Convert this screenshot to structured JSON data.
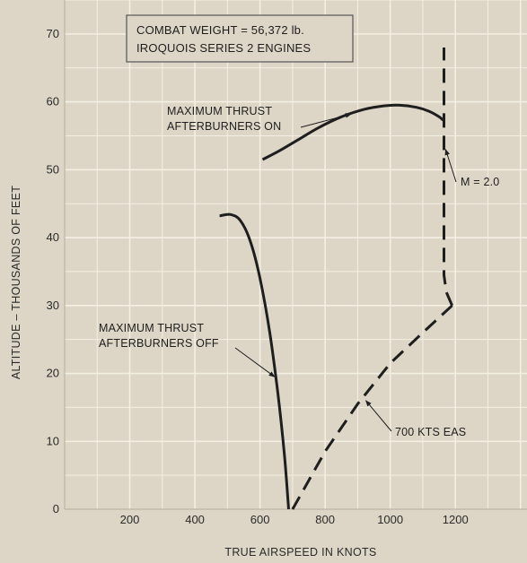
{
  "chart_data": {
    "type": "line",
    "xlabel": "TRUE AIRSPEED IN KNOTS",
    "ylabel": "ALTITUDE – THOUSANDS OF FEET",
    "xlim": [
      0,
      1420
    ],
    "ylim": [
      0,
      75
    ],
    "x_ticks": [
      200,
      400,
      600,
      800,
      1000,
      1200
    ],
    "y_ticks": [
      0,
      10,
      20,
      30,
      40,
      50,
      60,
      70
    ],
    "grid": true,
    "colors": {
      "background": "#ddd6c6",
      "grid": "#f4efe3",
      "ink": "#1e1e1e"
    },
    "info_box": [
      "COMBAT WEIGHT = 56,372 lb.",
      "IROQUOIS SERIES 2 ENGINES"
    ],
    "series": [
      {
        "line_style": "solid",
        "x": [
          608,
          660,
          720,
          780,
          850,
          920,
          980,
          1030,
          1080,
          1120,
          1150,
          1162
        ],
        "y": [
          51.5,
          52.8,
          54.5,
          56.2,
          57.8,
          58.9,
          59.4,
          59.5,
          59.2,
          58.6,
          57.8,
          57.3
        ]
      },
      {
        "line_style": "solid",
        "x": [
          476,
          510,
          540,
          570,
          600,
          630,
          655,
          675,
          688
        ],
        "y": [
          43.2,
          43.4,
          42.5,
          39.5,
          34.0,
          26.0,
          17.0,
          8.0,
          0
        ]
      },
      {
        "line_style": "dashed",
        "x": [
          700,
          800,
          900,
          1000,
          1100,
          1190
        ],
        "y": [
          0,
          8.5,
          15.5,
          21.5,
          26.0,
          30.0
        ]
      },
      {
        "line_style": "dashed",
        "x": [
          1190,
          1172,
          1165,
          1165
        ],
        "y": [
          30.0,
          32.0,
          34.5,
          68.0
        ]
      }
    ],
    "annotations": [
      {
        "lines": [
          "MAXIMUM THRUST",
          "AFTERBURNERS ON"
        ],
        "target": [
          880,
          58.2
        ]
      },
      {
        "lines": [
          "MAXIMUM THRUST",
          "AFTERBURNERS OFF"
        ],
        "target": [
          645,
          19.5
        ]
      },
      {
        "lines": [
          "M = 2.0"
        ],
        "target": [
          1170,
          53.0
        ]
      },
      {
        "lines": [
          "700 KTS EAS"
        ],
        "target": [
          925,
          16.0
        ]
      }
    ]
  }
}
